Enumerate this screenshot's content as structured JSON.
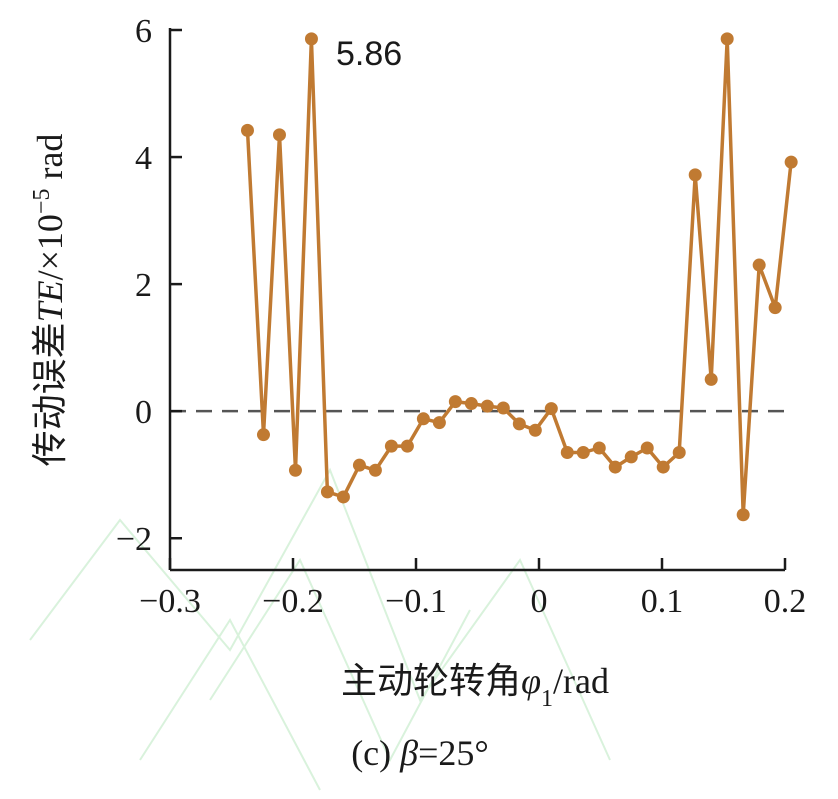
{
  "colors": {
    "series": "#c07a32",
    "axis": "#1a1a1a",
    "zero_line": "#555555"
  },
  "chart_data": {
    "type": "line",
    "xlabel": "主动轮转角φ1/rad",
    "xlabel_parts": {
      "main": "主动轮转角",
      "symbol": "φ",
      "sub": "1",
      "unit": "/rad"
    },
    "ylabel": "传动误差TE/×10⁻⁵ rad",
    "ylabel_parts": {
      "main": "传动误差",
      "symbol": "TE",
      "mid": "/×10",
      "sup": "−5",
      "unit": " rad"
    },
    "caption": "(c) β=25°",
    "caption_parts": {
      "prefix": "(c)  ",
      "symbol": "β",
      "rest": "=25°"
    },
    "xlim": [
      -0.3,
      0.2
    ],
    "ylim": [
      -2.5,
      6
    ],
    "xticks": [
      -0.3,
      -0.2,
      -0.1,
      0,
      0.1,
      0.2
    ],
    "xtick_labels": [
      "−0.3",
      "−0.2",
      "−0.1",
      "0",
      "0.1",
      "0.2"
    ],
    "yticks": [
      -2,
      0,
      2,
      4,
      6
    ],
    "ytick_labels": [
      "−2",
      "0",
      "2",
      "4",
      "6"
    ],
    "reference_line": {
      "y": 0,
      "style": "dashed"
    },
    "annotations": [
      {
        "text": "5.86",
        "x": -0.183,
        "y": 5.86
      }
    ],
    "series": [
      {
        "x": [
          -0.237,
          -0.224,
          -0.211,
          -0.198,
          -0.185,
          -0.172,
          -0.159,
          -0.146,
          -0.133,
          -0.12,
          -0.107,
          -0.094,
          -0.081,
          -0.068,
          -0.055,
          -0.042,
          -0.029,
          -0.016,
          -0.003,
          0.01,
          0.023,
          0.036,
          0.049,
          0.062,
          0.075,
          0.088,
          0.101,
          0.114,
          0.127,
          0.14,
          0.153,
          0.166,
          0.179,
          0.192,
          0.205
        ],
        "y": [
          4.42,
          -0.37,
          4.35,
          -0.93,
          5.86,
          -1.27,
          -1.35,
          -0.85,
          -0.93,
          -0.55,
          -0.55,
          -0.12,
          -0.18,
          0.15,
          0.12,
          0.08,
          0.05,
          -0.2,
          -0.3,
          0.04,
          -0.65,
          -0.65,
          -0.58,
          -0.88,
          -0.72,
          -0.58,
          -0.88,
          -0.65,
          3.72,
          0.5,
          5.86,
          -1.63,
          2.3,
          1.63,
          3.92
        ]
      }
    ]
  }
}
